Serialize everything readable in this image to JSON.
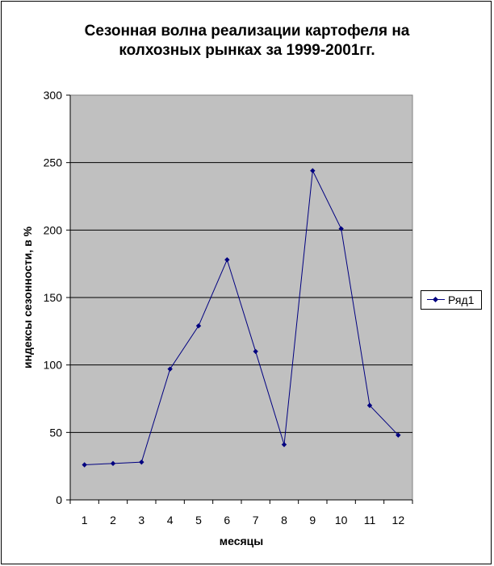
{
  "chart_data": {
    "type": "line",
    "title_lines": [
      "Сезонная волна реализации картофеля на",
      "колхозных рынках за 1999-2001гг."
    ],
    "xlabel": "месяцы",
    "ylabel": "индексы сезонности, в %",
    "categories": [
      "1",
      "2",
      "3",
      "4",
      "5",
      "6",
      "7",
      "8",
      "9",
      "10",
      "11",
      "12"
    ],
    "series": [
      {
        "name": "Ряд1",
        "values": [
          26,
          27,
          28,
          97,
          129,
          178,
          110,
          41,
          244,
          201,
          70,
          48
        ],
        "color": "#000080"
      }
    ],
    "ylim": [
      0,
      300
    ],
    "yticks": [
      0,
      50,
      100,
      150,
      200,
      250,
      300
    ],
    "grid": true,
    "legend_position": "right",
    "plot_background": "#c0c0c0"
  }
}
